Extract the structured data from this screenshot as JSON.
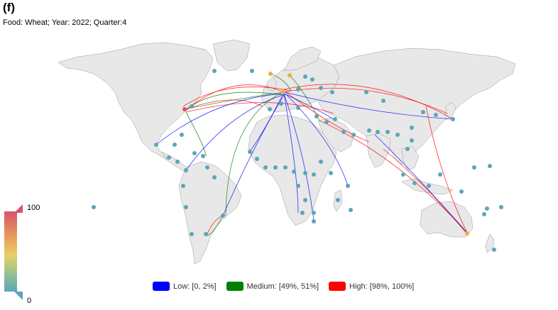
{
  "panel_label": "(f)",
  "subtitle": "Food: Wheat; Year: 2022; Quarter:4",
  "scale": {
    "max": "100",
    "min": "0"
  },
  "legend": [
    {
      "label": "Low: [0, 2%]",
      "color": "#0000ff"
    },
    {
      "label": "Medium: [49%, 51%]",
      "color": "#008000"
    },
    {
      "label": "High: [98%, 100%]",
      "color": "#ff0000"
    }
  ]
}
